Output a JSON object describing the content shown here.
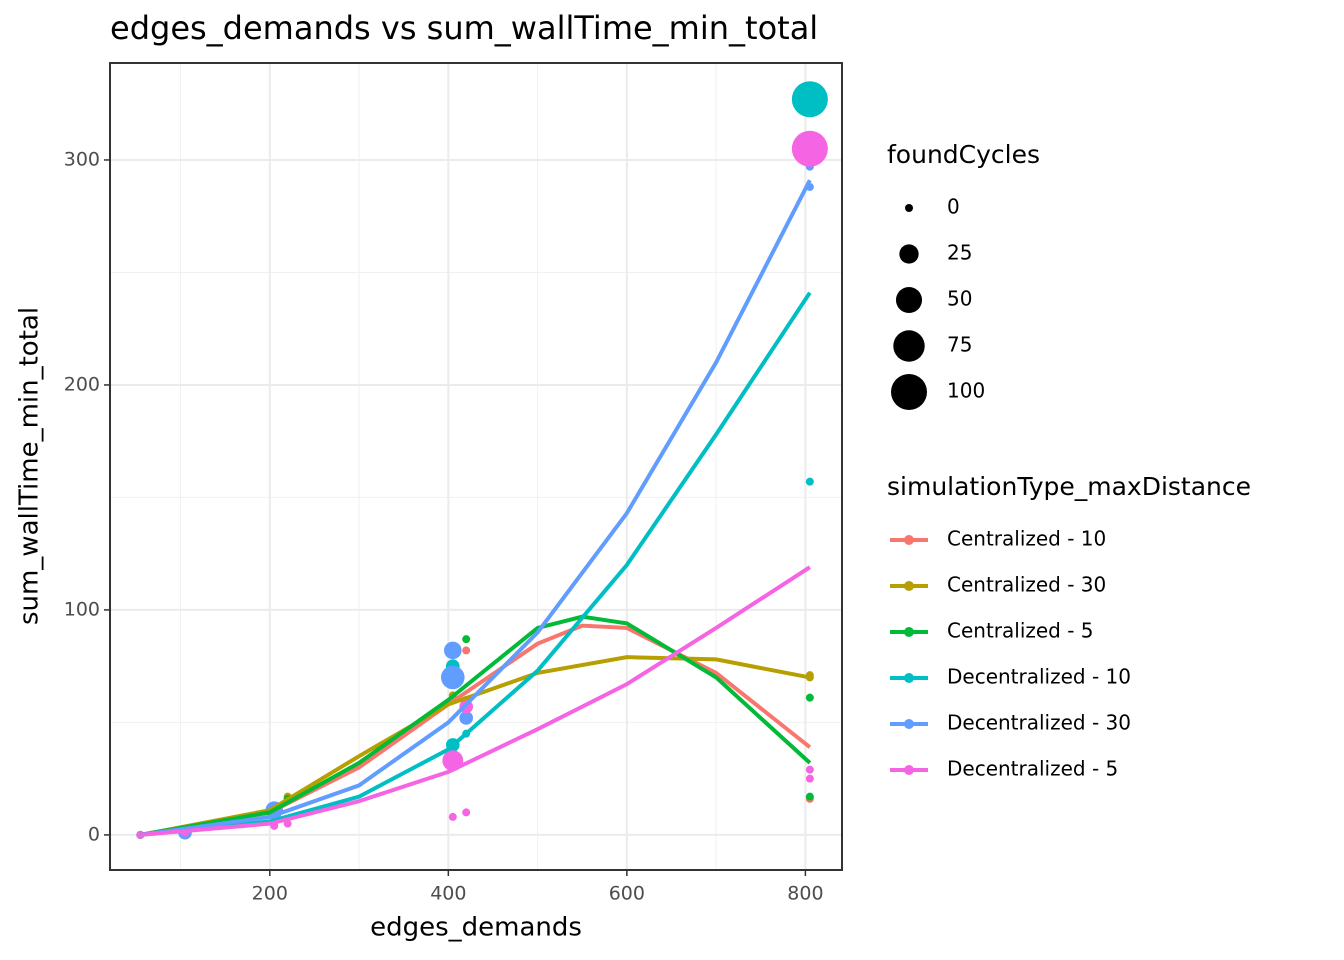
{
  "chart_data": {
    "type": "scatter",
    "title": "edges_demands  vs  sum_wallTime_min_total",
    "x_label": "edges_demands",
    "y_label": "sum_wallTime_min_total",
    "xlim": [
      21,
      841
    ],
    "ylim": [
      -15.6,
      343.1
    ],
    "xticks": [
      200,
      400,
      600,
      800
    ],
    "yticks": [
      0,
      100,
      200,
      300
    ],
    "xminor": [
      100,
      300,
      500,
      700
    ],
    "yminor": [
      50,
      150,
      250
    ],
    "grid": true,
    "size_legend": {
      "title": "foundCycles",
      "values": [
        0,
        25,
        50,
        75,
        100
      ]
    },
    "color_legend_title": "simulationType_maxDistance",
    "series": [
      {
        "name": "Centralized - 10",
        "color": "#F8766D",
        "x": [
          55,
          105,
          205,
          220,
          405,
          420,
          805
        ],
        "values": [
          0,
          1,
          8,
          15,
          60,
          82,
          16
        ],
        "sizes": [
          0,
          0,
          0,
          0,
          0,
          0,
          0
        ],
        "smooth": {
          "x": [
            55,
            200,
            300,
            400,
            500,
            550,
            600,
            700,
            805
          ],
          "values": [
            0,
            10,
            30,
            58,
            85,
            93,
            92,
            72,
            39
          ]
        }
      },
      {
        "name": "Centralized - 30",
        "color": "#B79F00",
        "x": [
          55,
          105,
          205,
          220,
          405,
          420,
          805,
          805
        ],
        "values": [
          0,
          1,
          10,
          17,
          62,
          60,
          70,
          71
        ],
        "sizes": [
          0,
          0,
          0,
          0,
          0,
          0,
          0,
          0
        ],
        "smooth": {
          "x": [
            55,
            200,
            300,
            400,
            500,
            600,
            700,
            805
          ],
          "values": [
            0,
            11,
            35,
            58,
            72,
            79,
            78,
            70
          ]
        }
      },
      {
        "name": "Centralized - 5",
        "color": "#00BA38",
        "x": [
          55,
          105,
          205,
          220,
          405,
          420,
          805,
          805
        ],
        "values": [
          0,
          1,
          9,
          16,
          80,
          87,
          61,
          17
        ],
        "sizes": [
          0,
          0,
          0,
          0,
          0,
          0,
          0,
          0
        ],
        "smooth": {
          "x": [
            55,
            200,
            300,
            400,
            500,
            550,
            600,
            700,
            805
          ],
          "values": [
            0,
            10,
            32,
            60,
            92,
            97,
            94,
            70,
            32
          ]
        }
      },
      {
        "name": "Decentralized - 10",
        "color": "#00BFC4",
        "x": [
          55,
          105,
          205,
          405,
          405,
          420,
          805,
          805
        ],
        "values": [
          0,
          1,
          10,
          75,
          40,
          45,
          157,
          327
        ],
        "sizes": [
          0,
          5,
          10,
          10,
          10,
          0,
          0,
          100
        ],
        "smooth": {
          "x": [
            55,
            200,
            300,
            400,
            500,
            600,
            700,
            805
          ],
          "values": [
            0,
            6,
            17,
            38,
            73,
            120,
            178,
            241
          ]
        }
      },
      {
        "name": "Decentralized - 30",
        "color": "#619CFF",
        "x": [
          55,
          105,
          205,
          405,
          405,
          405,
          420,
          805,
          805
        ],
        "values": [
          0,
          1,
          11,
          82,
          70,
          30,
          52,
          297,
          288
        ],
        "sizes": [
          0,
          10,
          20,
          20,
          40,
          0,
          10,
          0,
          0
        ],
        "smooth": {
          "x": [
            55,
            200,
            300,
            400,
            500,
            600,
            700,
            805
          ],
          "values": [
            0,
            8,
            22,
            50,
            90,
            143,
            210,
            291
          ]
        }
      },
      {
        "name": "Decentralized - 5",
        "color": "#F564E3",
        "x": [
          55,
          105,
          205,
          220,
          405,
          420,
          405,
          420,
          805,
          805,
          805
        ],
        "values": [
          0,
          1,
          4,
          5,
          8,
          10,
          33,
          57,
          29,
          25,
          305
        ],
        "sizes": [
          0,
          0,
          0,
          0,
          0,
          0,
          30,
          10,
          0,
          0,
          100
        ],
        "smooth": {
          "x": [
            55,
            200,
            300,
            400,
            500,
            600,
            700,
            805
          ],
          "values": [
            0,
            5,
            15,
            28,
            47,
            67,
            92,
            119
          ]
        }
      }
    ]
  }
}
